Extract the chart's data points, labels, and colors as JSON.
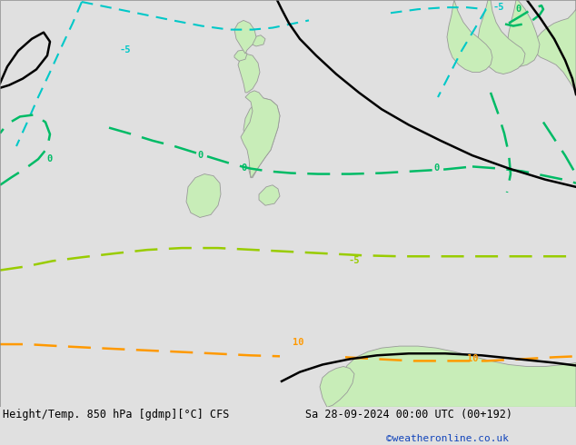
{
  "title_left": "Height/Temp. 850 hPa [gdmp][°C] CFS",
  "title_right": "Sa 28-09-2024 00:00 UTC (00+192)",
  "credit": "©weatheronline.co.uk",
  "bg_color": "#e0e0e0",
  "land_color": "#c8edb8",
  "coast_color": "#999999",
  "font_family": "monospace",
  "credit_color": "#1144bb",
  "black": "#000000",
  "cyan": "#00c8c8",
  "green": "#00bb66",
  "yellow_green": "#99cc00",
  "orange": "#ff9900"
}
